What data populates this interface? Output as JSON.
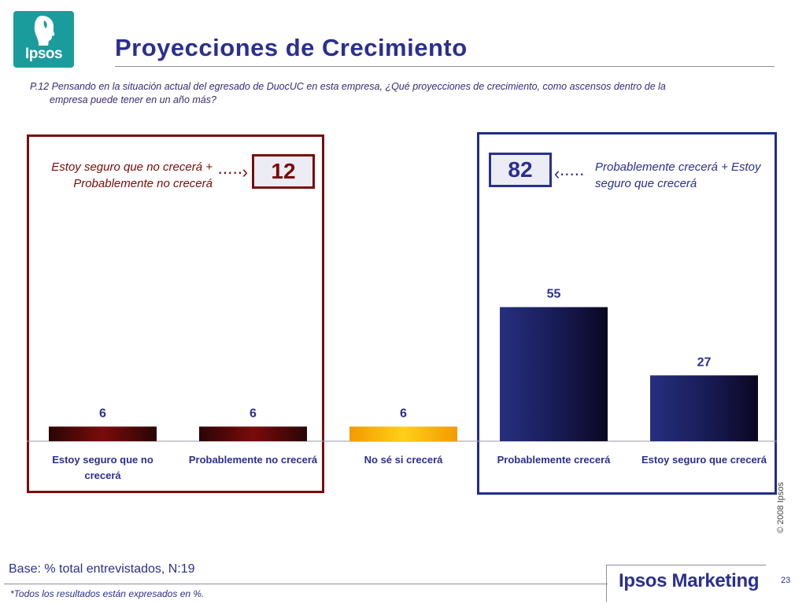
{
  "logo": {
    "text": "Ipsos"
  },
  "title": "Proyecciones de Crecimiento",
  "question": {
    "line1": "P.12 Pensando en la situación actual del egresado de DuocUC en esta empresa, ¿Qué proyecciones de crecimiento, como ascensos dentro de la",
    "line2": "empresa puede tener en un año más?"
  },
  "groups": {
    "negative": {
      "label": "Estoy seguro que no crecerá + Probablemente no crecerá",
      "total": "12",
      "color": "#7a0b0b"
    },
    "positive": {
      "label": "Probablemente crecerá + Estoy seguro que crecerá",
      "total": "82",
      "color": "#2b2f8f"
    }
  },
  "chart_data": {
    "type": "bar",
    "categories": [
      "Estoy seguro que no crecerá",
      "Probablemente no crecerá",
      "No sé si crecerá",
      "Probablemente crecerá",
      "Estoy seguro que crecerá"
    ],
    "values": [
      6,
      6,
      6,
      55,
      27
    ],
    "bar_colors": [
      "#7a0b0b",
      "#7a0b0b",
      "#f6a800",
      "#1f2470",
      "#1f2470"
    ],
    "ylim": [
      0,
      100
    ],
    "grid": false,
    "data_labels": true
  },
  "copyright": "© 2008 Ipsos",
  "base": "Base: % total entrevistados, N:19",
  "footnote": "*Todos los resultados están expresados en %.",
  "brand": "Ipsos Marketing",
  "page_number": "23"
}
